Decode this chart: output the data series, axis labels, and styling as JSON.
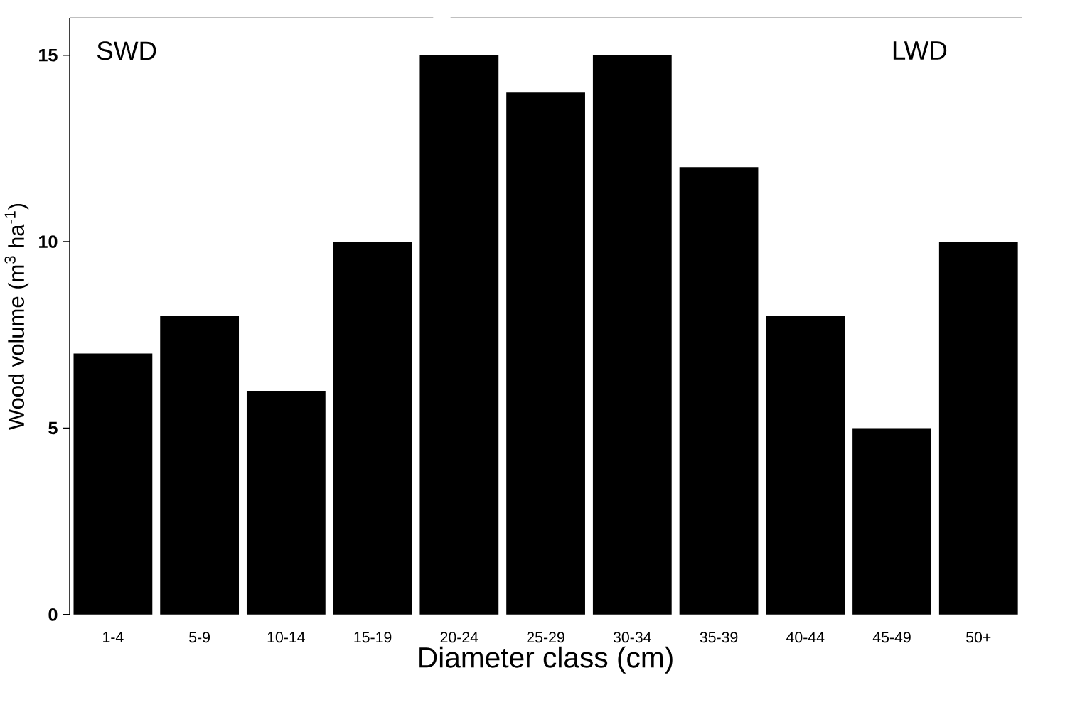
{
  "chart_data": {
    "type": "bar",
    "xlabel": "Diameter class (cm)",
    "ylabel": "Wood volume (m$^{3}$ ha$^{-1}$)",
    "categories": [
      "1-4",
      "5-9",
      "10-14",
      "15-19",
      "20-24",
      "25-29",
      "30-34",
      "35-39",
      "40-44",
      "45-49",
      "50+"
    ],
    "values": [
      7,
      8,
      6,
      10,
      15,
      14,
      15,
      12,
      8,
      5,
      10
    ],
    "color": "#000000",
    "ylim": [
      0,
      16
    ],
    "yticks": [
      0,
      5,
      10,
      15
    ],
    "grid": false,
    "annotations": [
      "SWD",
      "LWD"
    ]
  }
}
